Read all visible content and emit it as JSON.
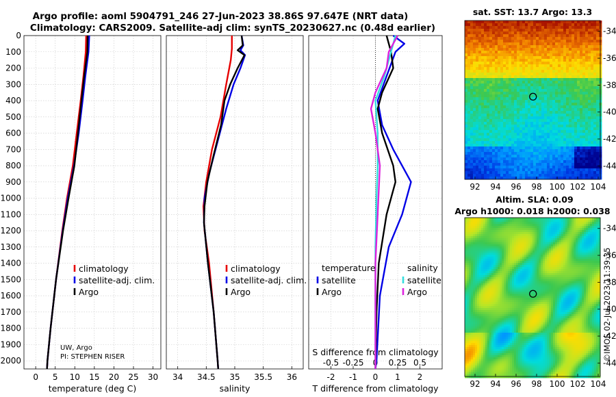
{
  "title_line1": "Argo profile: aoml 5904791_246 27-Jun-2023 38.86S 97.647E (NRT data)",
  "title_line2": "Climatology: CARS2009. Satellite-adj clim: synTS_20230627.nc (0.48d earlier)",
  "credit_line1": "UW, Argo",
  "credit_line2": "PI: STEPHEN RISER",
  "side_label": "©IMOS 02-Jul-2023 11:39:35",
  "colors": {
    "climatology": "#e60000",
    "satellite": "#0000e6",
    "argo": "#000000",
    "sal_satellite": "#33dddd",
    "sal_argo": "#dd22dd"
  },
  "chart_data": [
    {
      "type": "line",
      "xlabel": "temperature (deg C)",
      "ylabel": "",
      "xlim": [
        -3,
        32
      ],
      "ylim": [
        2050,
        0
      ],
      "xticks": [
        0,
        5,
        10,
        15,
        20,
        25,
        30
      ],
      "yticks": [
        0,
        100,
        200,
        300,
        400,
        500,
        600,
        700,
        800,
        900,
        1000,
        1100,
        1200,
        1300,
        1400,
        1500,
        1600,
        1700,
        1800,
        1900,
        2000
      ],
      "grid": true,
      "legend": {
        "placement": "lower-right",
        "entries": [
          "climatology",
          "satellite-adj. clim.",
          "Argo"
        ]
      },
      "series": [
        {
          "name": "climatology",
          "color": "#e60000",
          "points": [
            [
              12.9,
              0
            ],
            [
              12.8,
              100
            ],
            [
              12.2,
              250
            ],
            [
              11.5,
              400
            ],
            [
              10.5,
              600
            ],
            [
              9.5,
              800
            ],
            [
              8.0,
              1000
            ],
            [
              6.8,
              1200
            ],
            [
              5.2,
              1500
            ],
            [
              3.8,
              1800
            ],
            [
              3.0,
              2000
            ],
            [
              2.9,
              2050
            ]
          ]
        },
        {
          "name": "satellite-adj. clim.",
          "color": "#0000e6",
          "points": [
            [
              13.7,
              0
            ],
            [
              13.5,
              100
            ],
            [
              12.7,
              250
            ],
            [
              12.0,
              400
            ],
            [
              11.0,
              600
            ],
            [
              9.8,
              800
            ],
            [
              8.2,
              1000
            ],
            [
              6.9,
              1200
            ],
            [
              5.2,
              1500
            ],
            [
              3.8,
              1800
            ],
            [
              3.0,
              2000
            ],
            [
              2.9,
              2050
            ]
          ]
        },
        {
          "name": "Argo",
          "color": "#000000",
          "points": [
            [
              13.3,
              0
            ],
            [
              13.2,
              100
            ],
            [
              12.4,
              250
            ],
            [
              11.7,
              400
            ],
            [
              10.8,
              600
            ],
            [
              9.9,
              800
            ],
            [
              8.4,
              1000
            ],
            [
              7.0,
              1200
            ],
            [
              5.2,
              1500
            ],
            [
              3.8,
              1800
            ],
            [
              3.0,
              2000
            ],
            [
              2.9,
              2050
            ]
          ]
        }
      ]
    },
    {
      "type": "line",
      "xlabel": "salinity",
      "ylabel": "",
      "xlim": [
        33.8,
        36.2
      ],
      "ylim": [
        2050,
        0
      ],
      "xticks": [
        34,
        34.5,
        35,
        35.5,
        36
      ],
      "yticks": [
        0,
        100,
        200,
        300,
        400,
        500,
        600,
        700,
        800,
        900,
        1000,
        1100,
        1200,
        1300,
        1400,
        1500,
        1600,
        1700,
        1800,
        1900,
        2000
      ],
      "grid": true,
      "legend": {
        "placement": "lower-right",
        "entries": [
          "climatology",
          "satellite-adj. clim.",
          "Argo"
        ]
      },
      "series": [
        {
          "name": "climatology",
          "color": "#e60000",
          "points": [
            [
              34.95,
              0
            ],
            [
              34.95,
              80
            ],
            [
              34.93,
              150
            ],
            [
              34.85,
              300
            ],
            [
              34.75,
              500
            ],
            [
              34.6,
              700
            ],
            [
              34.5,
              900
            ],
            [
              34.45,
              1050
            ],
            [
              34.47,
              1200
            ],
            [
              34.55,
              1400
            ],
            [
              34.63,
              1700
            ],
            [
              34.7,
              2000
            ],
            [
              34.71,
              2050
            ]
          ]
        },
        {
          "name": "satellite-adj. clim.",
          "color": "#0000e6",
          "points": [
            [
              35.12,
              0
            ],
            [
              35.15,
              60
            ],
            [
              35.1,
              90
            ],
            [
              35.18,
              120
            ],
            [
              35.1,
              200
            ],
            [
              34.98,
              300
            ],
            [
              34.85,
              450
            ],
            [
              34.7,
              650
            ],
            [
              34.55,
              850
            ],
            [
              34.47,
              1000
            ],
            [
              34.46,
              1150
            ],
            [
              34.53,
              1400
            ],
            [
              34.63,
              1700
            ],
            [
              34.7,
              2000
            ],
            [
              34.71,
              2050
            ]
          ]
        },
        {
          "name": "Argo",
          "color": "#000000",
          "points": [
            [
              35.12,
              0
            ],
            [
              35.14,
              60
            ],
            [
              35.05,
              90
            ],
            [
              35.17,
              120
            ],
            [
              35.05,
              200
            ],
            [
              34.92,
              300
            ],
            [
              34.82,
              400
            ],
            [
              34.76,
              550
            ],
            [
              34.62,
              750
            ],
            [
              34.52,
              900
            ],
            [
              34.47,
              1050
            ],
            [
              34.46,
              1150
            ],
            [
              34.53,
              1400
            ],
            [
              34.63,
              1700
            ],
            [
              34.7,
              2000
            ],
            [
              34.71,
              2050
            ]
          ]
        }
      ]
    },
    {
      "type": "line",
      "xlabel": "T difference from climatology",
      "top_xlabel": "S difference from climatology",
      "ylabel": "",
      "xlim": [
        -3,
        3
      ],
      "ylim": [
        2050,
        0
      ],
      "xticks": [
        -2,
        -1,
        0,
        1,
        2
      ],
      "top_xticks": [
        "-0.5",
        "-0.25",
        "0",
        "0.25",
        "0.5"
      ],
      "grid": true,
      "legend_temperature": {
        "title": "temperature",
        "entries": [
          "satellite",
          "Argo"
        ]
      },
      "legend_salinity": {
        "title": "salinity",
        "entries": [
          "satellite",
          "Argo"
        ]
      },
      "series": [
        {
          "name": "temperature satellite",
          "color": "#0000e6",
          "points": [
            [
              0.8,
              0
            ],
            [
              1.3,
              50
            ],
            [
              0.9,
              100
            ],
            [
              0.5,
              250
            ],
            [
              0.1,
              400
            ],
            [
              0.3,
              550
            ],
            [
              0.8,
              700
            ],
            [
              1.6,
              900
            ],
            [
              1.2,
              1100
            ],
            [
              0.6,
              1300
            ],
            [
              0.2,
              1600
            ],
            [
              0.05,
              2000
            ],
            [
              0,
              2050
            ]
          ]
        },
        {
          "name": "temperature Argo",
          "color": "#000000",
          "points": [
            [
              0.5,
              0
            ],
            [
              0.7,
              100
            ],
            [
              0.8,
              200
            ],
            [
              0.3,
              350
            ],
            [
              0.1,
              450
            ],
            [
              0.3,
              600
            ],
            [
              0.8,
              800
            ],
            [
              0.9,
              900
            ],
            [
              0.5,
              1100
            ],
            [
              0.15,
              1400
            ],
            [
              0.05,
              1700
            ],
            [
              0,
              2050
            ]
          ]
        },
        {
          "name": "salinity satellite",
          "color": "#33dddd",
          "points": [
            [
              0.9,
              0
            ],
            [
              0.7,
              100
            ],
            [
              0.4,
              250
            ],
            [
              0,
              400
            ],
            [
              0.1,
              600
            ],
            [
              0.1,
              800
            ],
            [
              0.05,
              1000
            ],
            [
              0,
              1300
            ],
            [
              0,
              2050
            ]
          ]
        },
        {
          "name": "salinity Argo",
          "color": "#dd22dd",
          "points": [
            [
              1.0,
              0
            ],
            [
              0.6,
              100
            ],
            [
              0.5,
              200
            ],
            [
              0,
              350
            ],
            [
              -0.2,
              450
            ],
            [
              0,
              600
            ],
            [
              0.2,
              800
            ],
            [
              0.1,
              1100
            ],
            [
              0,
              1400
            ],
            [
              0,
              2050
            ]
          ]
        }
      ]
    }
  ],
  "sst_map": {
    "title": "sat. SST: 13.7  Argo: 13.3",
    "xticks": [
      "92",
      "94",
      "96",
      "98",
      "100",
      "102",
      "104"
    ],
    "yticks": [
      "-34",
      "-36",
      "-38",
      "-40",
      "-42",
      "-44"
    ],
    "lon_range": [
      91,
      104.2
    ],
    "lat_range": [
      -45,
      -33.2
    ],
    "argo_lon": 97.647,
    "argo_lat": -38.86
  },
  "sla_map": {
    "title_line1": "Altim. SLA: 0.09",
    "title_line2": "Argo h1000: 0.018  h2000: 0.038",
    "xticks": [
      "92",
      "94",
      "96",
      "98",
      "100",
      "102",
      "104"
    ],
    "yticks": [
      "-34",
      "-36",
      "-38",
      "-40",
      "-42",
      "-44"
    ],
    "lon_range": [
      91,
      104.2
    ],
    "lat_range": [
      -45,
      -33.2
    ],
    "argo_lon": 97.647,
    "argo_lat": -38.86
  }
}
